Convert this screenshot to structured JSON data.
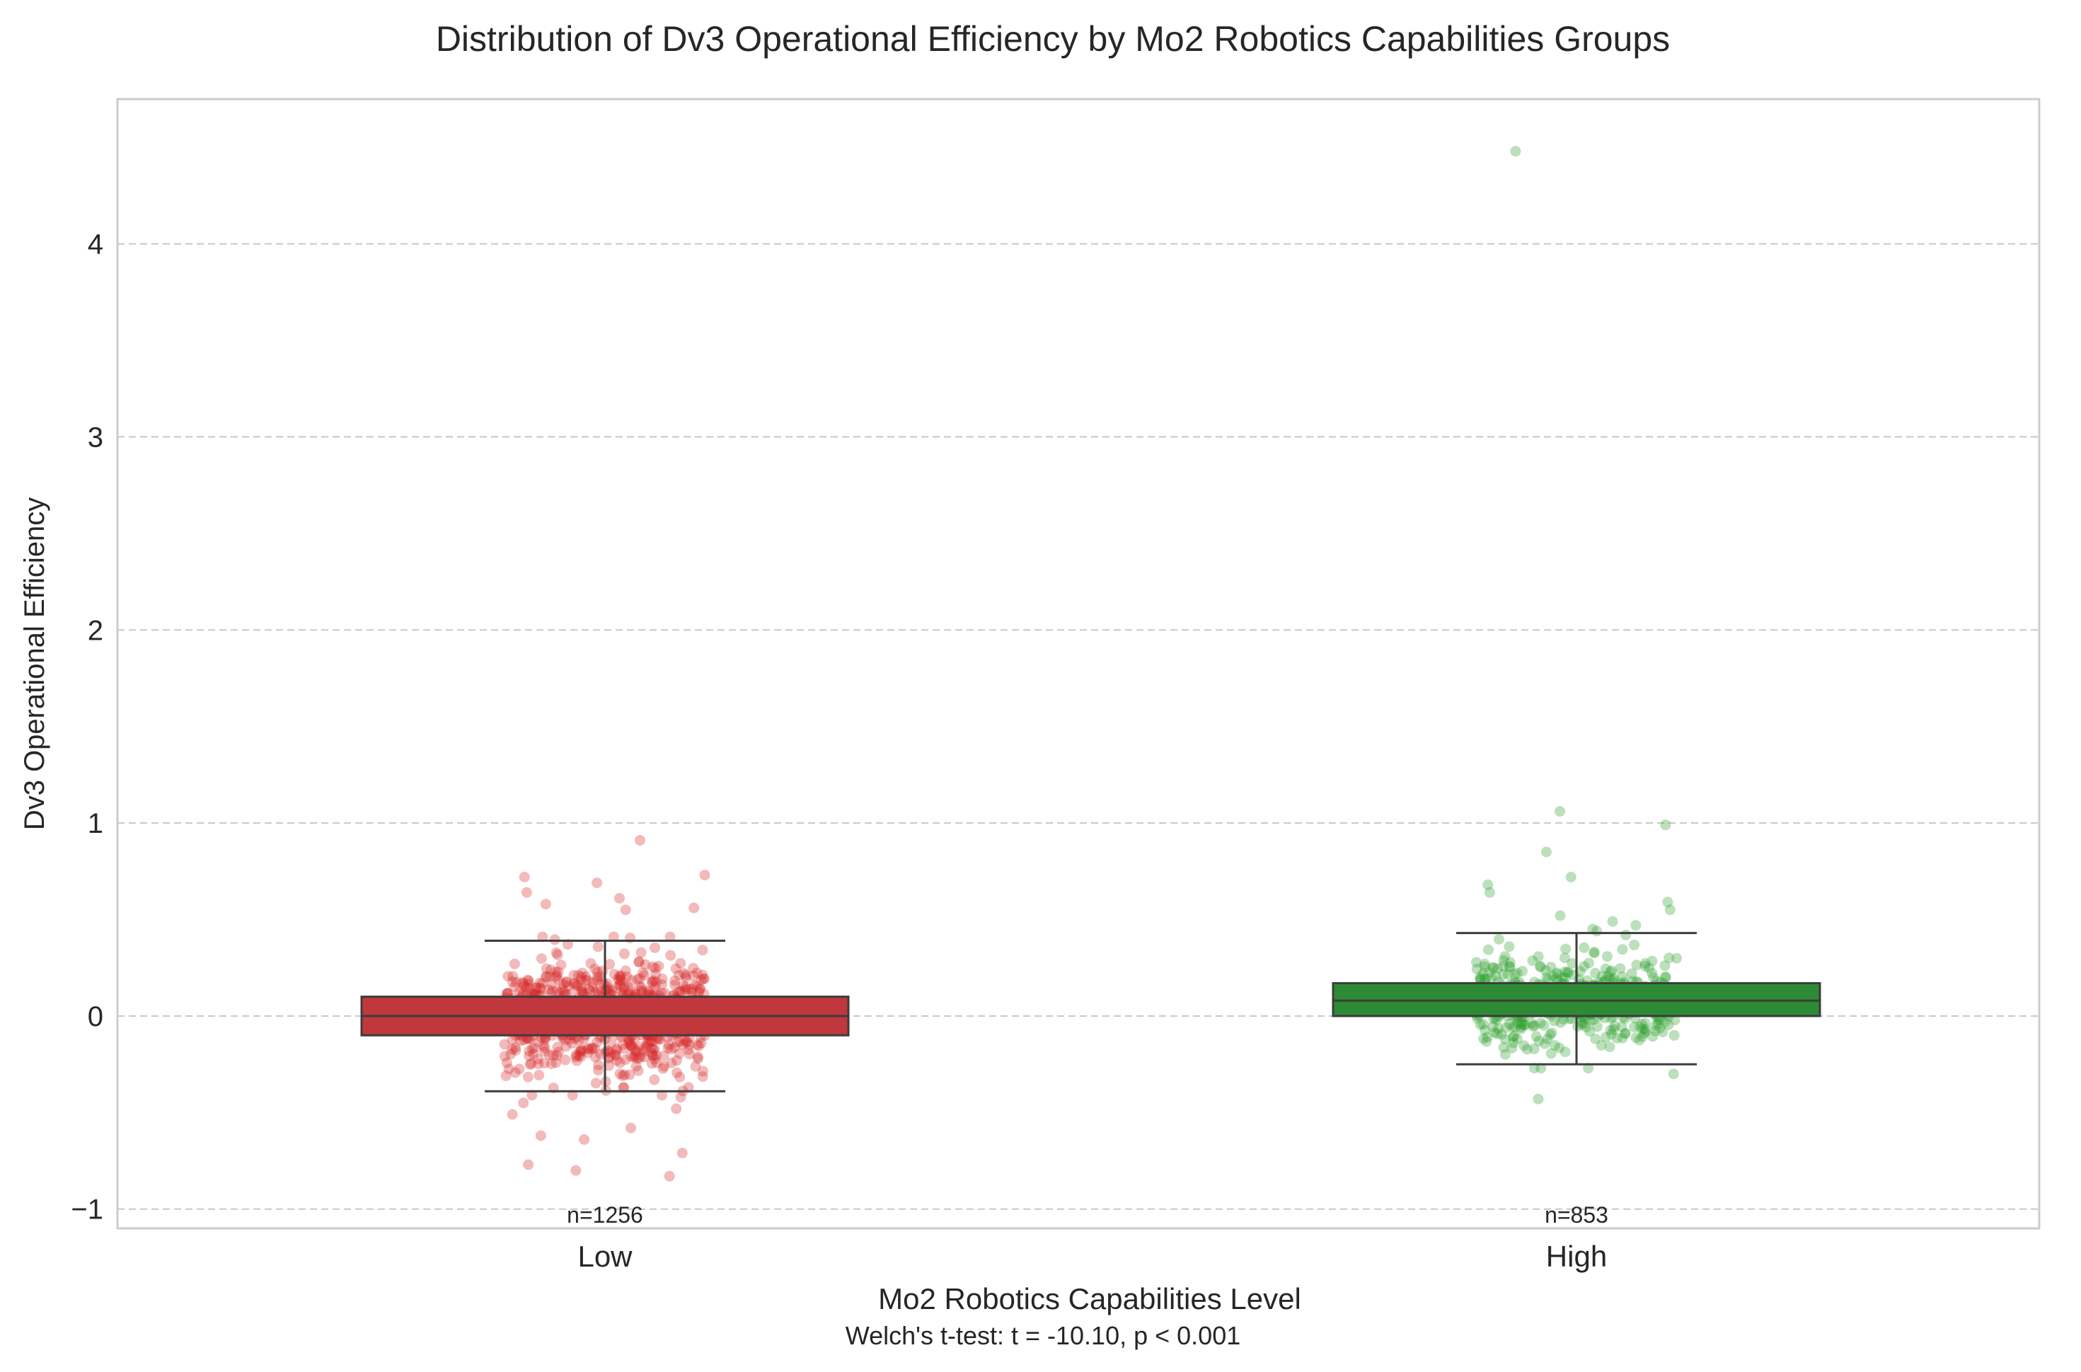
{
  "chart_data": {
    "type": "box",
    "title": "Distribution of Dv3 Operational Efficiency by Mo2 Robotics Capabilities Groups",
    "xlabel": "Mo2 Robotics Capabilities Level",
    "ylabel": "Dv3 Operational Efficiency",
    "footnote": "Welch's t-test: t = -10.10, p < 0.001",
    "ylim": [
      -1.1,
      4.75
    ],
    "yticks": [
      -1,
      0,
      1,
      2,
      3,
      4
    ],
    "ytick_labels": [
      "−1",
      "0",
      "1",
      "2",
      "3",
      "4"
    ],
    "grid": "y-dashed",
    "categories": [
      "Low",
      "High"
    ],
    "series": [
      {
        "name": "Low",
        "n_label": "n=1256",
        "n": 1256,
        "color": "#d62728",
        "box_color": "#c0373d",
        "q1": -0.1,
        "median": 0.0,
        "q3": 0.1,
        "whisker_low": -0.39,
        "whisker_high": 0.39,
        "jitter_sd": 0.15,
        "outliers": [
          0.91,
          0.73,
          0.72,
          0.69,
          0.64,
          0.61,
          0.58,
          0.56,
          0.55,
          -0.42,
          -0.45,
          -0.48,
          -0.51,
          -0.58,
          -0.62,
          -0.64,
          -0.71,
          -0.77,
          -0.8,
          -0.83
        ]
      },
      {
        "name": "High",
        "n_label": "n=853",
        "n": 853,
        "color": "#2ca02c",
        "box_color": "#2e8b35",
        "q1": 0.0,
        "median": 0.08,
        "q3": 0.17,
        "whisker_low": -0.25,
        "whisker_high": 0.43,
        "jitter_sd": 0.12,
        "outliers": [
          4.48,
          1.06,
          0.99,
          0.85,
          0.72,
          0.68,
          0.64,
          0.59,
          0.55,
          0.52,
          0.49,
          0.47,
          -0.27,
          -0.3,
          -0.43
        ]
      }
    ]
  }
}
